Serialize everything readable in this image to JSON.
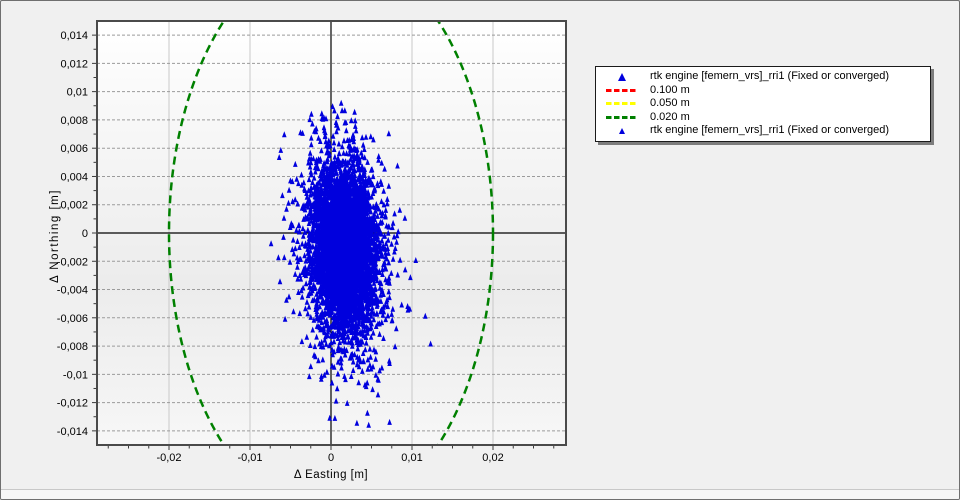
{
  "window": {
    "background": "#f0f0f0",
    "border_color": "#6f6f6f"
  },
  "chart_data": {
    "type": "scatter",
    "title": "",
    "xlabel": "Δ Easting [m]",
    "ylabel": "Δ Northing [m]",
    "xlim": [
      -0.0289,
      0.029
    ],
    "ylim": [
      -0.015,
      0.015
    ],
    "grid": {
      "vertical": "solid",
      "horizontal": "dashed",
      "zero_axes": "solid-black"
    },
    "x_ticks": {
      "values": [
        -0.02,
        -0.01,
        0,
        0.01,
        0.02
      ],
      "labels": [
        "-0,02",
        "-0,01",
        "0",
        "0,01",
        "0,02"
      ],
      "minor_step": 0.0025
    },
    "y_ticks": {
      "values": [
        0.014,
        0.012,
        0.01,
        0.008,
        0.006,
        0.004,
        0.002,
        0,
        -0.002,
        -0.004,
        -0.006,
        -0.008,
        -0.01,
        -0.012,
        -0.014
      ],
      "labels": [
        "0,014",
        "0,012",
        "0,01",
        "0,008",
        "0,006",
        "0,004",
        "0,002",
        "0",
        "-0,002",
        "-0,004",
        "-0,006",
        "-0,008",
        "-0,01",
        "-0,012",
        "-0,014"
      ],
      "minor_step": 0.001
    },
    "reference_circles": [
      {
        "label": "0.100 m",
        "radius_m": 0.1,
        "color": "#ff0000",
        "visible_in_plot": false
      },
      {
        "label": "0.050 m",
        "radius_m": 0.05,
        "color": "#ffff00",
        "visible_in_plot": false
      },
      {
        "label": "0.020 m",
        "radius_m": 0.02,
        "color": "#008000",
        "visible_in_plot": true,
        "dash": [
          8,
          5
        ],
        "stroke_width": 2.5
      }
    ],
    "series": [
      {
        "name": "rtk engine [femern_vrs]_rri1 (Fixed or converged)",
        "marker": "triangle-up",
        "color": "#0000dd",
        "marker_size_px": 4.6,
        "distribution": {
          "seed": 1234567,
          "center": [
            0.0016,
            -0.0012
          ],
          "sigma": [
            0.00205,
            0.0031
          ],
          "correlation": -0.12,
          "n_core": 4600,
          "halos": [
            {
              "n": 260,
              "scale_x": 1.5,
              "scale_y": 1.35
            },
            {
              "n": 70,
              "scale_x": 1.9,
              "scale_y": 1.65
            }
          ],
          "caps": {
            "x_min": -0.0078,
            "x_max": 0.0125,
            "y_min": -0.0138,
            "y_max": 0.0092
          }
        },
        "outliers": [
          [
            0.0123,
            -0.0079
          ],
          [
            0.0032,
            -0.0135
          ],
          [
            0.0045,
            -0.0128
          ],
          [
            0.002,
            -0.0121
          ],
          [
            0.0058,
            -0.0115
          ],
          [
            0.0042,
            -0.0108
          ],
          [
            0.0025,
            -0.0102
          ],
          [
            0.006,
            -0.0098
          ],
          [
            0.0013,
            -0.0096
          ],
          [
            0.0072,
            -0.0091
          ],
          [
            0.0048,
            -0.0094
          ],
          [
            -0.0005,
            -0.0099
          ],
          [
            0.0035,
            -0.0089
          ],
          [
            -0.0025,
            -0.0095
          ],
          [
            -0.0012,
            -0.0104
          ],
          [
            -0.0062,
            0.0058
          ],
          [
            -0.0064,
            0.0053
          ],
          [
            -0.0074,
            -0.0008
          ],
          [
            -0.0065,
            -0.0018
          ],
          [
            -0.0063,
            -0.0035
          ],
          [
            -0.0055,
            -0.0048
          ],
          [
            -0.006,
            0.0026
          ],
          [
            -0.0058,
            0.001
          ],
          [
            0.0002,
            0.0089
          ],
          [
            0.0017,
            0.0086
          ],
          [
            -0.001,
            0.008
          ],
          [
            0.0008,
            0.0082
          ],
          [
            0.0025,
            0.0079
          ],
          [
            -0.0035,
            0.007
          ],
          [
            0.003,
            0.0075
          ],
          [
            0.0098,
            -0.0032
          ],
          [
            0.0095,
            -0.0055
          ]
        ]
      }
    ]
  },
  "legend": {
    "items": [
      {
        "symbol": "triangle",
        "color": "#0000dd",
        "size": "normal",
        "label": "rtk engine [femern_vrs]_rri1 (Fixed or converged)"
      },
      {
        "symbol": "dash",
        "color": "#ff0000",
        "label": "0.100 m"
      },
      {
        "symbol": "dash",
        "color": "#ffff00",
        "label": "0.050 m"
      },
      {
        "symbol": "dash",
        "color": "#008000",
        "label": "0.020 m"
      },
      {
        "symbol": "triangle",
        "color": "#0000dd",
        "size": "small",
        "label": "rtk engine [femern_vrs]_rri1 (Fixed or converged)"
      }
    ]
  },
  "colors": {
    "scatter_blue": "#0000dd",
    "grid_vertical": "#c9c9c9",
    "grid_horizontal": "#9b9b9b",
    "plot_border": "#4a4a4a",
    "tick": "#3a3a3a"
  }
}
